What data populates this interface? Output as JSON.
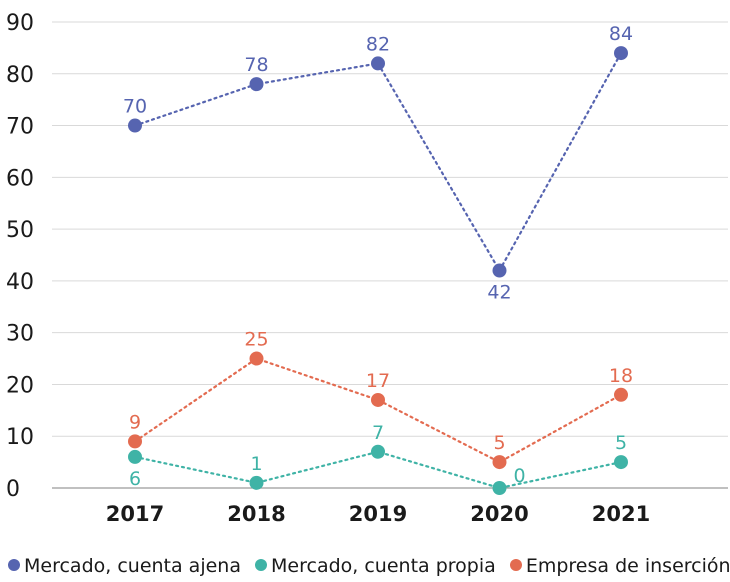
{
  "chart_data": {
    "type": "line",
    "title": "",
    "xlabel": "",
    "ylabel": "",
    "x": [
      "2017",
      "2018",
      "2019",
      "2020",
      "2021"
    ],
    "ylim": [
      0,
      90
    ],
    "yticks": [
      0,
      10,
      20,
      30,
      40,
      50,
      60,
      70,
      80,
      90
    ],
    "grid": true,
    "legend_position": "bottom",
    "series": [
      {
        "name": "Mercado, cuenta ajena",
        "values": [
          70,
          78,
          82,
          42,
          84
        ],
        "color": "#5664b0",
        "label_pos": [
          "above",
          "above",
          "above",
          "below",
          "above"
        ]
      },
      {
        "name": "Mercado, cuenta propia",
        "values": [
          6,
          1,
          7,
          0,
          5
        ],
        "color": "#3fb3a6",
        "label_pos": [
          "below",
          "above",
          "above",
          "right",
          "above"
        ]
      },
      {
        "name": "Empresa de inserción",
        "values": [
          9,
          25,
          17,
          5,
          18
        ],
        "color": "#e36b50",
        "label_pos": [
          "above",
          "above",
          "above",
          "above",
          "above"
        ]
      }
    ]
  }
}
